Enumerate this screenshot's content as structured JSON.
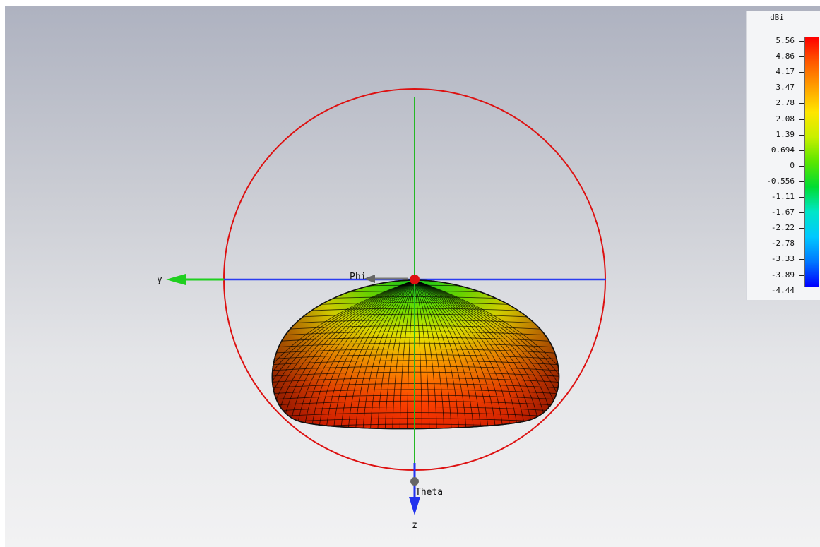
{
  "view": {
    "type": "3d-far-field-pattern",
    "background_top": "#aeb2c0",
    "background_bottom": "#f2f2f3"
  },
  "axes": {
    "y_label": "y",
    "z_label": "z",
    "phi_label": "Phi",
    "theta_label": "Theta",
    "y_axis_color": "#1fcf1f",
    "z_axis_color": "#2233ee",
    "horizontal_line_color": "#2a3cf0",
    "vertical_line_color": "#25b825",
    "circle_color": "#dd1111",
    "origin_marker_color": "#dd1111",
    "theta_marker_color": "#666666"
  },
  "legend": {
    "unit": "dBi",
    "ticks": [
      "5.56",
      "4.86",
      "4.17",
      "3.47",
      "2.78",
      "2.08",
      "1.39",
      "0.694",
      "0",
      "-0.556",
      "-1.11",
      "-1.67",
      "-2.22",
      "-2.78",
      "-3.33",
      "-3.89",
      "-4.44"
    ],
    "max": 5.56,
    "min": -4.44,
    "colormap": [
      "#ff0000",
      "#ff5a00",
      "#ffa000",
      "#ffe600",
      "#c8f000",
      "#5ae600",
      "#00dc32",
      "#00e6c8",
      "#00c8ff",
      "#0078ff",
      "#0000ff"
    ]
  }
}
